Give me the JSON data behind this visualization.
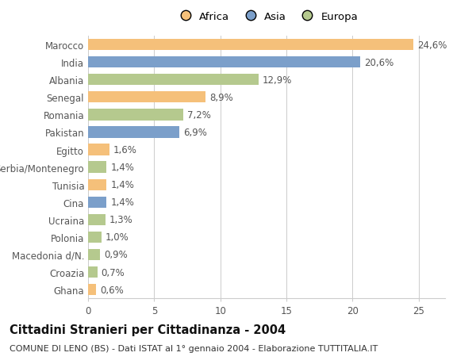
{
  "categories": [
    "Marocco",
    "India",
    "Albania",
    "Senegal",
    "Romania",
    "Pakistan",
    "Egitto",
    "Serbia/Montenegro",
    "Tunisia",
    "Cina",
    "Ucraina",
    "Polonia",
    "Macedonia d/N.",
    "Croazia",
    "Ghana"
  ],
  "values": [
    24.6,
    20.6,
    12.9,
    8.9,
    7.2,
    6.9,
    1.6,
    1.4,
    1.4,
    1.4,
    1.3,
    1.0,
    0.9,
    0.7,
    0.6
  ],
  "labels": [
    "24,6%",
    "20,6%",
    "12,9%",
    "8,9%",
    "7,2%",
    "6,9%",
    "1,6%",
    "1,4%",
    "1,4%",
    "1,4%",
    "1,3%",
    "1,0%",
    "0,9%",
    "0,7%",
    "0,6%"
  ],
  "continent": [
    "Africa",
    "Asia",
    "Europa",
    "Africa",
    "Europa",
    "Asia",
    "Africa",
    "Europa",
    "Africa",
    "Asia",
    "Europa",
    "Europa",
    "Europa",
    "Europa",
    "Africa"
  ],
  "colors": {
    "Africa": "#F5C07A",
    "Asia": "#7B9FCA",
    "Europa": "#B5C98E"
  },
  "xlim": [
    0,
    27
  ],
  "xticks": [
    0,
    5,
    10,
    15,
    20,
    25
  ],
  "title": "Cittadini Stranieri per Cittadinanza - 2004",
  "subtitle": "COMUNE DI LENO (BS) - Dati ISTAT al 1° gennaio 2004 - Elaborazione TUTTITALIA.IT",
  "background_color": "#ffffff",
  "bar_height": 0.65,
  "label_fontsize": 8.5,
  "tick_fontsize": 8.5,
  "title_fontsize": 10.5,
  "subtitle_fontsize": 8.0
}
